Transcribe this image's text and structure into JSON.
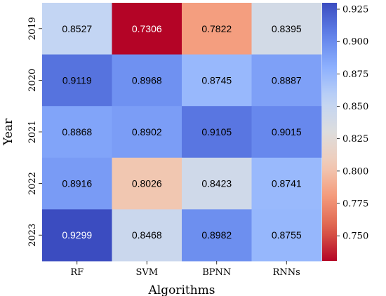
{
  "chart_data": {
    "type": "heatmap",
    "title": "",
    "xlabel": "Algorithms",
    "ylabel": "Year",
    "x_categories": [
      "RF",
      "SVM",
      "BPNN",
      "RNNs"
    ],
    "y_categories": [
      "2019",
      "2020",
      "2021",
      "2022",
      "2023"
    ],
    "values": [
      [
        0.8527,
        0.7306,
        0.7822,
        0.8395
      ],
      [
        0.9119,
        0.8968,
        0.8745,
        0.8887
      ],
      [
        0.8868,
        0.8902,
        0.9105,
        0.9015
      ],
      [
        0.8916,
        0.8026,
        0.8423,
        0.8741
      ],
      [
        0.9299,
        0.8468,
        0.8982,
        0.8755
      ]
    ],
    "value_labels": [
      [
        "0.8527",
        "0.7306",
        "0.7822",
        "0.8395"
      ],
      [
        "0.9119",
        "0.8968",
        "0.8745",
        "0.8887"
      ],
      [
        "0.8868",
        "0.8902",
        "0.9105",
        "0.9015"
      ],
      [
        "0.8916",
        "0.8026",
        "0.8423",
        "0.8741"
      ],
      [
        "0.9299",
        "0.8468",
        "0.8982",
        "0.8755"
      ]
    ],
    "colormap": "coolwarm_r",
    "colorbar": {
      "range": [
        0.7306,
        0.9299
      ],
      "ticks": [
        0.75,
        0.775,
        0.8,
        0.825,
        0.85,
        0.875,
        0.9,
        0.925
      ],
      "tick_labels": [
        "0.750",
        "0.775",
        "0.800",
        "0.825",
        "0.850",
        "0.875",
        "0.900",
        "0.925"
      ]
    }
  }
}
